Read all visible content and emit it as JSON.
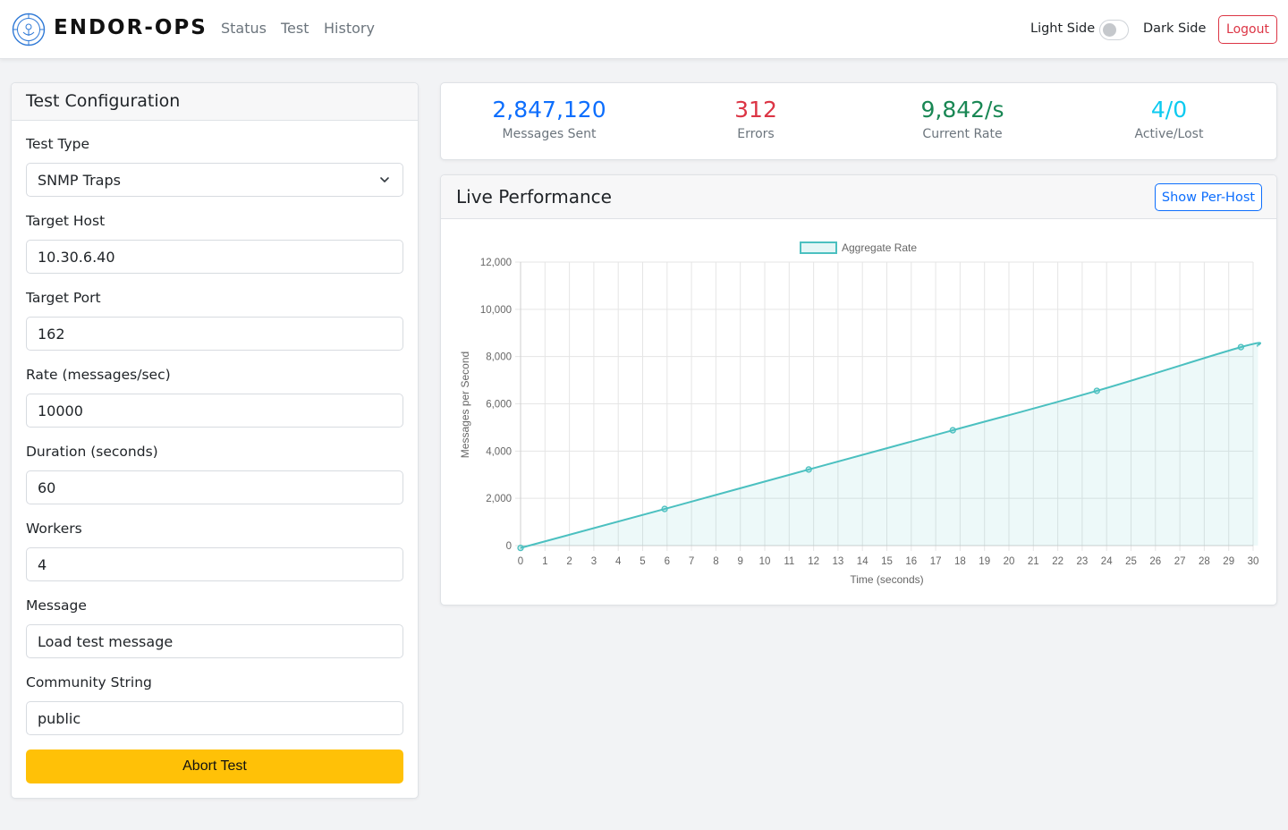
{
  "nav": {
    "brand": "ENDOR-OPS",
    "links": [
      "Status",
      "Test",
      "History"
    ],
    "light_label": "Light Side",
    "dark_label": "Dark Side",
    "logout": "Logout",
    "dark_mode": false
  },
  "config": {
    "title": "Test Configuration",
    "fields": [
      {
        "label": "Test Type",
        "value": "SNMP Traps",
        "kind": "select"
      },
      {
        "label": "Target Host",
        "value": "10.30.6.40",
        "kind": "input"
      },
      {
        "label": "Target Port",
        "value": "162",
        "kind": "input"
      },
      {
        "label": "Rate (messages/sec)",
        "value": "10000",
        "kind": "input"
      },
      {
        "label": "Duration (seconds)",
        "value": "60",
        "kind": "input"
      },
      {
        "label": "Workers",
        "value": "4",
        "kind": "input"
      },
      {
        "label": "Message",
        "value": "Load test message",
        "kind": "input"
      },
      {
        "label": "Community String",
        "value": "public",
        "kind": "input"
      }
    ],
    "abort_label": "Abort Test"
  },
  "stats": [
    {
      "value": "2,847,120",
      "label": "Messages Sent",
      "color": "#0d6efd"
    },
    {
      "value": "312",
      "label": "Errors",
      "color": "#dc3545"
    },
    {
      "value": "9,842/s",
      "label": "Current Rate",
      "color": "#198754"
    },
    {
      "value": "4/0",
      "label": "Active/Lost",
      "color": "#0dcaf0"
    }
  ],
  "performance": {
    "title": "Live Performance",
    "per_host_label": "Show Per-Host"
  },
  "chart_data": {
    "type": "line",
    "xlabel": "Time (seconds)",
    "ylabel": "Messages per Second",
    "ylim": [
      0,
      12000
    ],
    "xlim": [
      0,
      30
    ],
    "x_ticks": [
      0,
      1,
      2,
      3,
      4,
      5,
      6,
      7,
      8,
      9,
      10,
      11,
      12,
      13,
      14,
      15,
      16,
      17,
      18,
      19,
      20,
      21,
      22,
      23,
      24,
      25,
      26,
      27,
      28,
      29,
      30
    ],
    "y_ticks": [
      0,
      2000,
      4000,
      6000,
      8000,
      10000,
      12000
    ],
    "y_tick_labels": [
      "0",
      "2,000",
      "4,000",
      "6,000",
      "8,000",
      "10,000",
      "12,000"
    ],
    "grid": true,
    "legend_position": "top",
    "color": "#4bc0c0",
    "series": [
      {
        "name": "Aggregate Rate",
        "filled": true,
        "x": [
          0,
          5.9,
          11.8,
          17.7,
          23.6,
          29.5,
          30.2
        ],
        "values": [
          -100,
          1550,
          3220,
          4880,
          6550,
          8400,
          8450
        ]
      }
    ]
  }
}
